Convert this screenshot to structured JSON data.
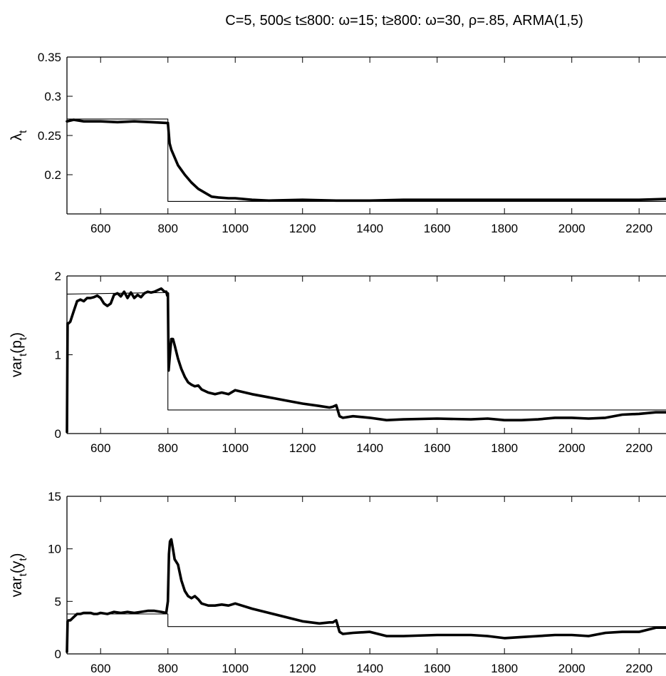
{
  "figure": {
    "title": "C=5, 500≤ t≤800: ω=15; t≥800: ω=30, ρ=.85, ARMA(1,5)"
  },
  "chart_data": [
    {
      "type": "line",
      "ylabel": "λ",
      "ylabel_sub": "t",
      "xlim": [
        500,
        2280
      ],
      "ylim": [
        0.15,
        0.35
      ],
      "xticks": [
        600,
        800,
        1000,
        1200,
        1400,
        1600,
        1800,
        2000,
        2200
      ],
      "yticks": [
        0.2,
        0.25,
        0.3,
        0.35
      ],
      "ytick_labels": [
        "0.2",
        "0.25",
        "0.3",
        "0.35"
      ],
      "series": [
        {
          "style": "thick",
          "x": [
            500,
            520,
            550,
            600,
            650,
            700,
            750,
            795,
            800,
            805,
            810,
            820,
            830,
            850,
            870,
            890,
            910,
            930,
            950,
            980,
            1000,
            1050,
            1100,
            1200,
            1300,
            1400,
            1500,
            1600,
            1700,
            1800,
            1900,
            2000,
            2100,
            2200,
            2280
          ],
          "y": [
            0.268,
            0.27,
            0.268,
            0.268,
            0.267,
            0.268,
            0.267,
            0.266,
            0.266,
            0.24,
            0.232,
            0.222,
            0.212,
            0.2,
            0.19,
            0.182,
            0.177,
            0.172,
            0.171,
            0.17,
            0.17,
            0.168,
            0.167,
            0.168,
            0.167,
            0.167,
            0.168,
            0.168,
            0.168,
            0.168,
            0.168,
            0.168,
            0.168,
            0.168,
            0.169
          ]
        },
        {
          "style": "thin",
          "x": [
            500,
            800,
            800,
            2280
          ],
          "y": [
            0.271,
            0.271,
            0.166,
            0.166
          ]
        }
      ]
    },
    {
      "type": "line",
      "ylabel": "var",
      "ylabel_sub": "t",
      "ylabel_rest": "(p",
      "ylabel_sub2": "t",
      "ylabel_end": ")",
      "xlim": [
        500,
        2280
      ],
      "ylim": [
        0,
        2
      ],
      "xticks": [
        600,
        800,
        1000,
        1200,
        1400,
        1600,
        1800,
        2000,
        2200
      ],
      "yticks": [
        0,
        1,
        2
      ],
      "ytick_labels": [
        "0",
        "1",
        "2"
      ],
      "series": [
        {
          "style": "thick",
          "x": [
            500,
            502,
            505,
            510,
            520,
            530,
            540,
            550,
            560,
            570,
            580,
            590,
            600,
            610,
            620,
            630,
            640,
            650,
            660,
            670,
            680,
            690,
            700,
            710,
            720,
            730,
            740,
            750,
            760,
            770,
            780,
            790,
            795,
            798,
            800,
            802,
            805,
            810,
            815,
            820,
            830,
            840,
            850,
            860,
            870,
            880,
            890,
            900,
            920,
            940,
            960,
            980,
            1000,
            1050,
            1100,
            1150,
            1200,
            1250,
            1280,
            1290,
            1300,
            1310,
            1320,
            1350,
            1400,
            1450,
            1500,
            1600,
            1700,
            1750,
            1800,
            1850,
            1900,
            1950,
            2000,
            2050,
            2100,
            2150,
            2200,
            2250,
            2280
          ],
          "y": [
            0.02,
            1.4,
            1.4,
            1.42,
            1.55,
            1.68,
            1.7,
            1.68,
            1.72,
            1.72,
            1.73,
            1.75,
            1.72,
            1.65,
            1.62,
            1.65,
            1.76,
            1.78,
            1.74,
            1.8,
            1.72,
            1.79,
            1.72,
            1.76,
            1.73,
            1.78,
            1.8,
            1.79,
            1.8,
            1.82,
            1.84,
            1.8,
            1.8,
            1.75,
            1.78,
            0.8,
            0.95,
            1.2,
            1.2,
            1.12,
            0.95,
            0.82,
            0.72,
            0.65,
            0.62,
            0.6,
            0.61,
            0.56,
            0.52,
            0.5,
            0.52,
            0.5,
            0.55,
            0.5,
            0.46,
            0.42,
            0.38,
            0.35,
            0.33,
            0.34,
            0.36,
            0.22,
            0.2,
            0.22,
            0.2,
            0.17,
            0.18,
            0.19,
            0.18,
            0.19,
            0.17,
            0.17,
            0.18,
            0.2,
            0.2,
            0.19,
            0.2,
            0.24,
            0.25,
            0.27,
            0.27
          ]
        },
        {
          "style": "thin",
          "x": [
            500,
            800,
            800,
            2280
          ],
          "y": [
            1.77,
            1.79,
            0.3,
            0.3
          ]
        }
      ]
    },
    {
      "type": "line",
      "ylabel": "var",
      "ylabel_sub": "t",
      "ylabel_rest": "(y",
      "ylabel_sub2": "t",
      "ylabel_end": ")",
      "xlim": [
        500,
        2280
      ],
      "ylim": [
        0,
        15
      ],
      "xticks": [
        600,
        800,
        1000,
        1200,
        1400,
        1600,
        1800,
        2000,
        2200
      ],
      "yticks": [
        0,
        5,
        10,
        15
      ],
      "ytick_labels": [
        "0",
        "5",
        "10",
        "15"
      ],
      "series": [
        {
          "style": "thick",
          "x": [
            500,
            502,
            505,
            510,
            520,
            530,
            540,
            550,
            560,
            570,
            580,
            590,
            600,
            620,
            640,
            660,
            680,
            700,
            720,
            740,
            760,
            780,
            795,
            800,
            803,
            806,
            810,
            815,
            820,
            830,
            840,
            850,
            860,
            870,
            880,
            890,
            900,
            920,
            940,
            960,
            980,
            1000,
            1050,
            1100,
            1150,
            1200,
            1250,
            1280,
            1290,
            1300,
            1310,
            1320,
            1350,
            1400,
            1450,
            1500,
            1600,
            1700,
            1750,
            1800,
            1850,
            1900,
            1950,
            2000,
            2050,
            2100,
            2150,
            2200,
            2250,
            2280
          ],
          "y": [
            0.2,
            3.1,
            3.2,
            3.2,
            3.5,
            3.8,
            3.8,
            3.9,
            3.9,
            3.9,
            3.8,
            3.8,
            3.9,
            3.8,
            4.0,
            3.9,
            4.0,
            3.9,
            4.0,
            4.1,
            4.1,
            4.0,
            3.9,
            5.0,
            9.5,
            10.7,
            10.9,
            10.0,
            9.0,
            8.5,
            7.0,
            6.0,
            5.5,
            5.3,
            5.5,
            5.2,
            4.8,
            4.6,
            4.6,
            4.7,
            4.6,
            4.8,
            4.3,
            3.9,
            3.5,
            3.1,
            2.9,
            3.0,
            3.0,
            3.2,
            2.1,
            1.9,
            2.0,
            2.1,
            1.7,
            1.7,
            1.8,
            1.8,
            1.7,
            1.5,
            1.6,
            1.7,
            1.8,
            1.8,
            1.7,
            2.0,
            2.1,
            2.1,
            2.5,
            2.5
          ]
        },
        {
          "style": "thin",
          "x": [
            500,
            800,
            800,
            2280
          ],
          "y": [
            3.8,
            3.8,
            2.6,
            2.6
          ]
        }
      ]
    }
  ]
}
